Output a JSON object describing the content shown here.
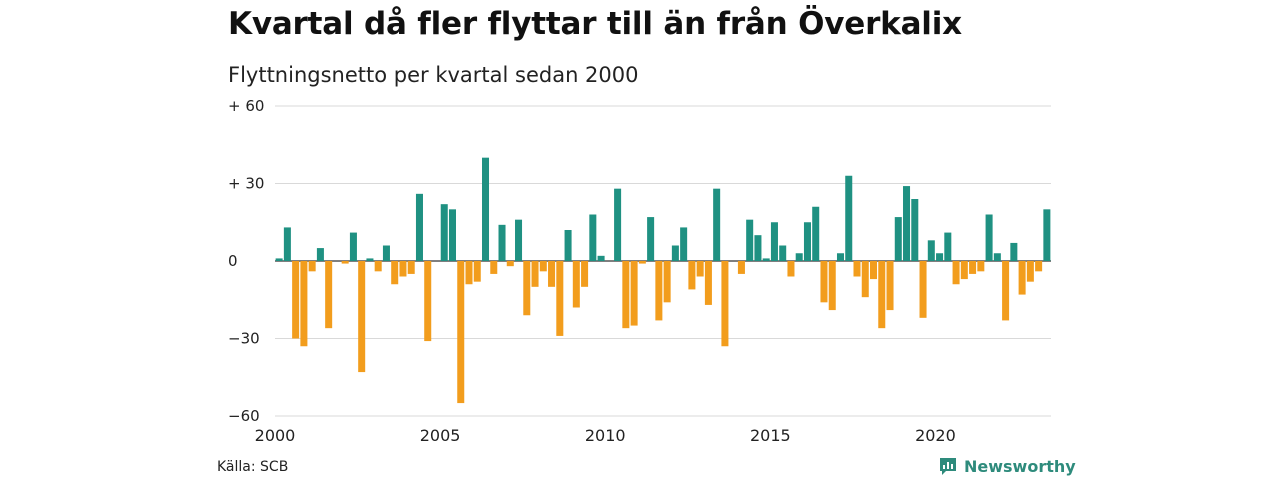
{
  "title": "Kvartal då fler flyttar till än från Överkalix",
  "subtitle": "Flyttningsnetto per kvartal sedan 2000",
  "source": "Källa: SCB",
  "brand": "Newsworthy",
  "colors": {
    "positive": "#1f9182",
    "negative": "#f29d1d",
    "grid": "#d9d9d9",
    "zero": "#333333"
  },
  "chart_data": {
    "type": "bar",
    "x_start_year": 2000,
    "values": [
      1,
      13,
      -30,
      -33,
      -4,
      5,
      -26,
      0,
      -1,
      11,
      -43,
      1,
      -4,
      6,
      -9,
      -6,
      -5,
      26,
      -31,
      0,
      22,
      20,
      -55,
      -9,
      -8,
      40,
      -5,
      14,
      -2,
      16,
      -21,
      -10,
      -4,
      -10,
      -29,
      12,
      -18,
      -10,
      18,
      2,
      0,
      28,
      -26,
      -25,
      -1,
      17,
      -23,
      -16,
      6,
      13,
      -11,
      -6,
      -17,
      28,
      -33,
      0,
      -5,
      16,
      10,
      1,
      15,
      6,
      -6,
      3,
      15,
      21,
      -16,
      -19,
      3,
      33,
      -6,
      -14,
      -7,
      -26,
      -19,
      17,
      29,
      24,
      -22,
      8,
      3,
      11,
      -9,
      -7,
      -5,
      -4,
      18,
      3,
      -23,
      7,
      -13,
      -8,
      -4,
      20
    ],
    "xlabels": [
      "2000",
      "2005",
      "2010",
      "2015",
      "2020"
    ],
    "yticks": [
      60,
      30,
      0,
      -30,
      -60
    ],
    "ytick_labels": [
      "+ 60",
      "+ 30",
      "0",
      "−30",
      "−60"
    ],
    "ylim": [
      -60,
      60
    ],
    "grid": true
  }
}
